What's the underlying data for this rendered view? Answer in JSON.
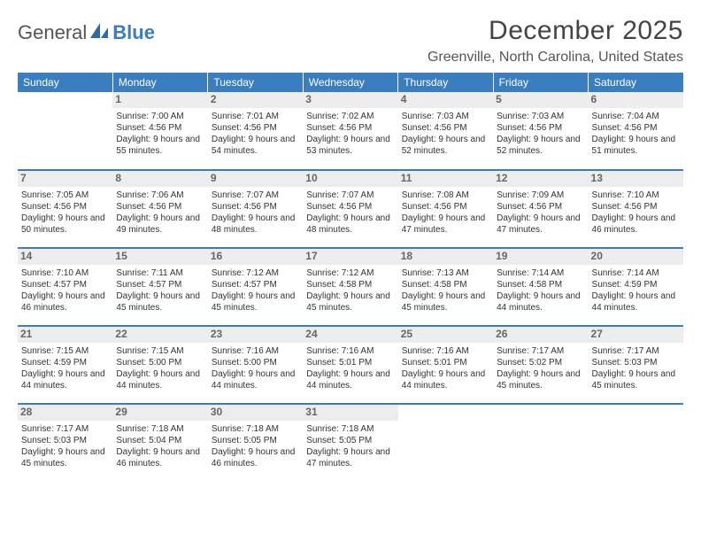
{
  "logo": {
    "part1": "General",
    "part2": "Blue"
  },
  "title": "December 2025",
  "location": "Greenville, North Carolina, United States",
  "header_bg": "#3a7ebf",
  "week_border": "#3a7ebf",
  "daynum_bg": "#ededed",
  "day_headers": [
    "Sunday",
    "Monday",
    "Tuesday",
    "Wednesday",
    "Thursday",
    "Friday",
    "Saturday"
  ],
  "weeks": [
    [
      {
        "n": "",
        "sr": "",
        "ss": "",
        "dl": ""
      },
      {
        "n": "1",
        "sr": "7:00 AM",
        "ss": "4:56 PM",
        "dl": "9 hours and 55 minutes."
      },
      {
        "n": "2",
        "sr": "7:01 AM",
        "ss": "4:56 PM",
        "dl": "9 hours and 54 minutes."
      },
      {
        "n": "3",
        "sr": "7:02 AM",
        "ss": "4:56 PM",
        "dl": "9 hours and 53 minutes."
      },
      {
        "n": "4",
        "sr": "7:03 AM",
        "ss": "4:56 PM",
        "dl": "9 hours and 52 minutes."
      },
      {
        "n": "5",
        "sr": "7:03 AM",
        "ss": "4:56 PM",
        "dl": "9 hours and 52 minutes."
      },
      {
        "n": "6",
        "sr": "7:04 AM",
        "ss": "4:56 PM",
        "dl": "9 hours and 51 minutes."
      }
    ],
    [
      {
        "n": "7",
        "sr": "7:05 AM",
        "ss": "4:56 PM",
        "dl": "9 hours and 50 minutes."
      },
      {
        "n": "8",
        "sr": "7:06 AM",
        "ss": "4:56 PM",
        "dl": "9 hours and 49 minutes."
      },
      {
        "n": "9",
        "sr": "7:07 AM",
        "ss": "4:56 PM",
        "dl": "9 hours and 48 minutes."
      },
      {
        "n": "10",
        "sr": "7:07 AM",
        "ss": "4:56 PM",
        "dl": "9 hours and 48 minutes."
      },
      {
        "n": "11",
        "sr": "7:08 AM",
        "ss": "4:56 PM",
        "dl": "9 hours and 47 minutes."
      },
      {
        "n": "12",
        "sr": "7:09 AM",
        "ss": "4:56 PM",
        "dl": "9 hours and 47 minutes."
      },
      {
        "n": "13",
        "sr": "7:10 AM",
        "ss": "4:56 PM",
        "dl": "9 hours and 46 minutes."
      }
    ],
    [
      {
        "n": "14",
        "sr": "7:10 AM",
        "ss": "4:57 PM",
        "dl": "9 hours and 46 minutes."
      },
      {
        "n": "15",
        "sr": "7:11 AM",
        "ss": "4:57 PM",
        "dl": "9 hours and 45 minutes."
      },
      {
        "n": "16",
        "sr": "7:12 AM",
        "ss": "4:57 PM",
        "dl": "9 hours and 45 minutes."
      },
      {
        "n": "17",
        "sr": "7:12 AM",
        "ss": "4:58 PM",
        "dl": "9 hours and 45 minutes."
      },
      {
        "n": "18",
        "sr": "7:13 AM",
        "ss": "4:58 PM",
        "dl": "9 hours and 45 minutes."
      },
      {
        "n": "19",
        "sr": "7:14 AM",
        "ss": "4:58 PM",
        "dl": "9 hours and 44 minutes."
      },
      {
        "n": "20",
        "sr": "7:14 AM",
        "ss": "4:59 PM",
        "dl": "9 hours and 44 minutes."
      }
    ],
    [
      {
        "n": "21",
        "sr": "7:15 AM",
        "ss": "4:59 PM",
        "dl": "9 hours and 44 minutes."
      },
      {
        "n": "22",
        "sr": "7:15 AM",
        "ss": "5:00 PM",
        "dl": "9 hours and 44 minutes."
      },
      {
        "n": "23",
        "sr": "7:16 AM",
        "ss": "5:00 PM",
        "dl": "9 hours and 44 minutes."
      },
      {
        "n": "24",
        "sr": "7:16 AM",
        "ss": "5:01 PM",
        "dl": "9 hours and 44 minutes."
      },
      {
        "n": "25",
        "sr": "7:16 AM",
        "ss": "5:01 PM",
        "dl": "9 hours and 44 minutes."
      },
      {
        "n": "26",
        "sr": "7:17 AM",
        "ss": "5:02 PM",
        "dl": "9 hours and 45 minutes."
      },
      {
        "n": "27",
        "sr": "7:17 AM",
        "ss": "5:03 PM",
        "dl": "9 hours and 45 minutes."
      }
    ],
    [
      {
        "n": "28",
        "sr": "7:17 AM",
        "ss": "5:03 PM",
        "dl": "9 hours and 45 minutes."
      },
      {
        "n": "29",
        "sr": "7:18 AM",
        "ss": "5:04 PM",
        "dl": "9 hours and 46 minutes."
      },
      {
        "n": "30",
        "sr": "7:18 AM",
        "ss": "5:05 PM",
        "dl": "9 hours and 46 minutes."
      },
      {
        "n": "31",
        "sr": "7:18 AM",
        "ss": "5:05 PM",
        "dl": "9 hours and 47 minutes."
      },
      {
        "n": "",
        "sr": "",
        "ss": "",
        "dl": ""
      },
      {
        "n": "",
        "sr": "",
        "ss": "",
        "dl": ""
      },
      {
        "n": "",
        "sr": "",
        "ss": "",
        "dl": ""
      }
    ]
  ],
  "labels": {
    "sunrise": "Sunrise:",
    "sunset": "Sunset:",
    "daylight": "Daylight:"
  }
}
